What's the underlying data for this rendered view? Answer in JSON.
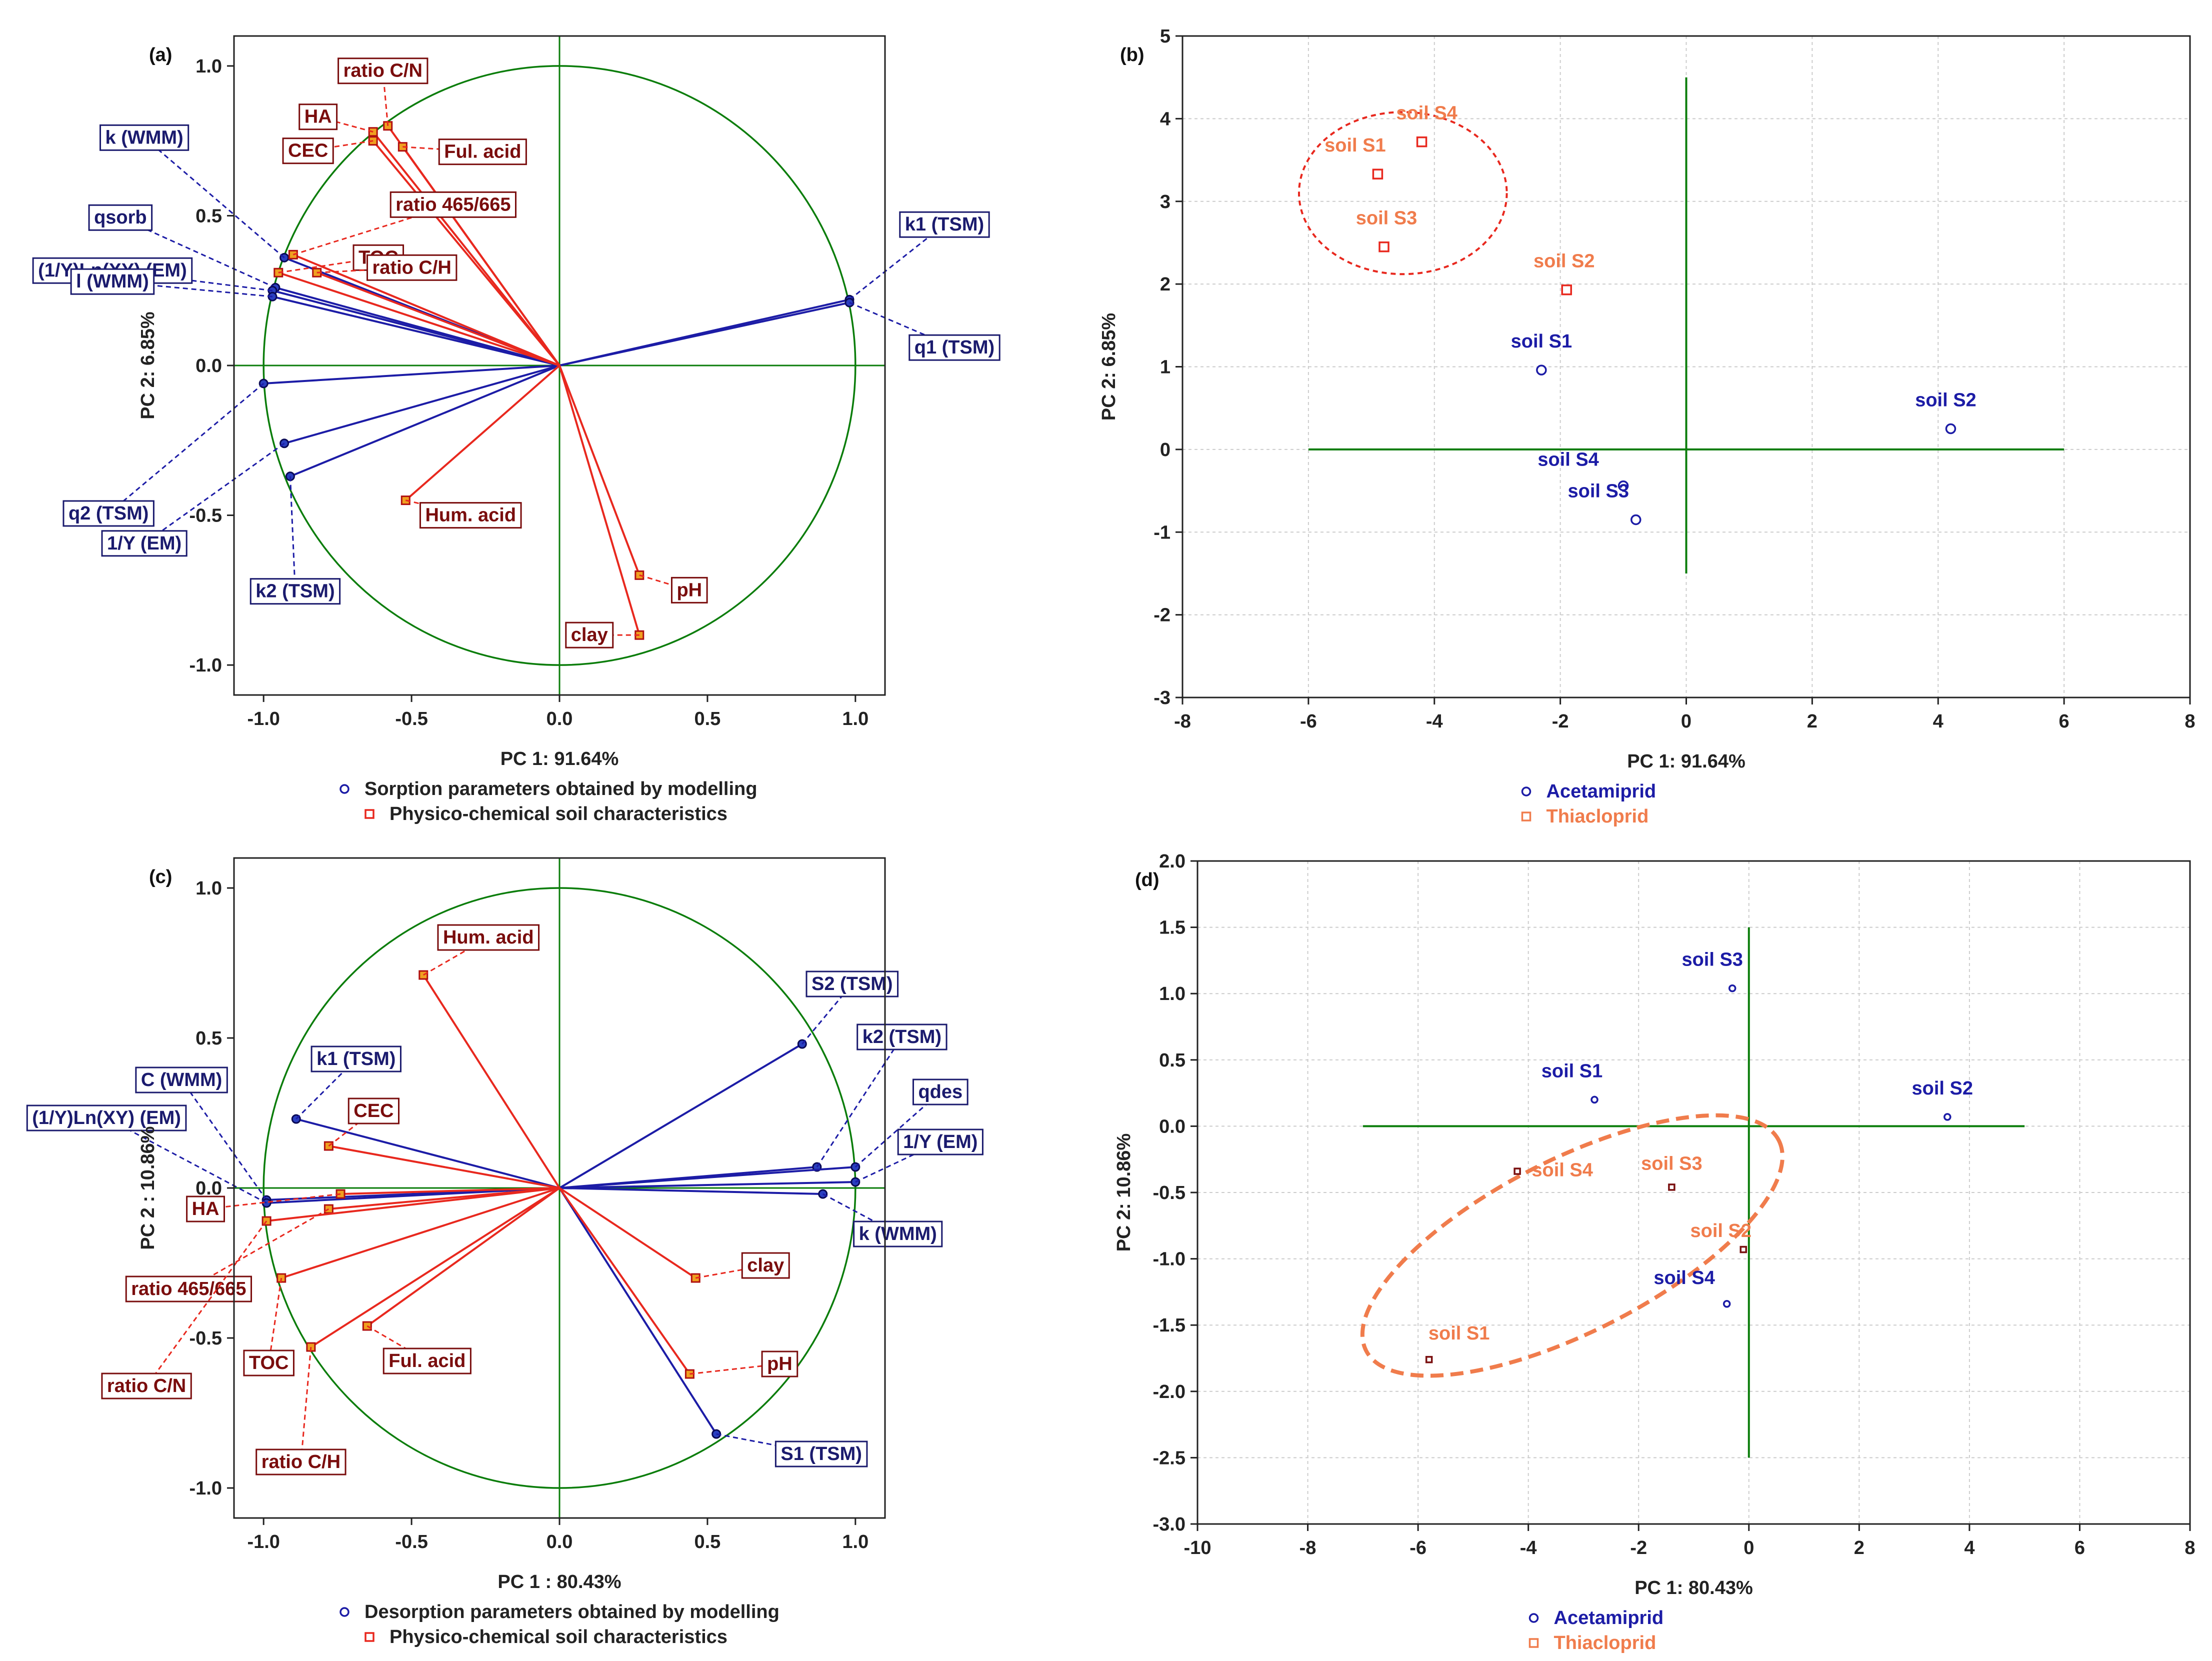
{
  "colors": {
    "sorption": "#1c1ca6",
    "physico": "#e8281e",
    "thiacloprid": "#f07c4c",
    "axis": "#0b7d0b",
    "grid": "#cccccc"
  },
  "chart_data": [
    {
      "id": "a",
      "type": "scatter",
      "subtype": "pca-loadings",
      "panel_label": "(a)",
      "xlabel": "PC 1: 91.64%",
      "ylabel": "PC 2:  6.85%",
      "xlim": [
        -1.1,
        1.1
      ],
      "ylim": [
        -1.1,
        1.1
      ],
      "xticks": [
        "-1.0",
        "-0.5",
        "0.0",
        "0.5",
        "1.0"
      ],
      "yticks": [
        "-1.0",
        "-0.5",
        "0.0",
        "0.5",
        "1.0"
      ],
      "legend": [
        {
          "name": "Sorption parameters obtained by modelling",
          "group": "blue"
        },
        {
          "name": "Physico-chemical soil characteristics",
          "group": "red"
        }
      ],
      "series": [
        {
          "name": "Sorption parameters obtained by modelling",
          "group": "blue",
          "points": [
            {
              "label": "k (WMM)",
              "x": -0.93,
              "y": 0.36
            },
            {
              "label": "qsorb",
              "x": -0.96,
              "y": 0.26
            },
            {
              "label": "(1/Y)Ln(XY) (EM)",
              "x": -0.97,
              "y": 0.25
            },
            {
              "label": "l (WMM)",
              "x": -0.97,
              "y": 0.23
            },
            {
              "label": "k1 (TSM)",
              "x": 0.98,
              "y": 0.22
            },
            {
              "label": "q1 (TSM)",
              "x": 0.98,
              "y": 0.21
            },
            {
              "label": "q2 (TSM)",
              "x": -1.0,
              "y": -0.06
            },
            {
              "label": "1/Y (EM)",
              "x": -0.93,
              "y": -0.26
            },
            {
              "label": "k2 (TSM)",
              "x": -0.91,
              "y": -0.37
            }
          ]
        },
        {
          "name": "Physico-chemical soil characteristics",
          "group": "red",
          "points": [
            {
              "label": "ratio C/N",
              "x": -0.58,
              "y": 0.8
            },
            {
              "label": "HA",
              "x": -0.63,
              "y": 0.78
            },
            {
              "label": "CEC",
              "x": -0.63,
              "y": 0.75
            },
            {
              "label": "Ful. acid",
              "x": -0.53,
              "y": 0.73
            },
            {
              "label": "ratio 465/665",
              "x": -0.9,
              "y": 0.37
            },
            {
              "label": "TOC",
              "x": -0.95,
              "y": 0.31
            },
            {
              "label": "ratio C/H",
              "x": -0.82,
              "y": 0.31
            },
            {
              "label": "Hum. acid",
              "x": -0.52,
              "y": -0.45
            },
            {
              "label": "pH",
              "x": 0.27,
              "y": -0.7
            },
            {
              "label": "clay",
              "x": 0.27,
              "y": -0.9
            }
          ]
        }
      ]
    },
    {
      "id": "b",
      "type": "scatter",
      "subtype": "pca-scores",
      "panel_label": "(b)",
      "xlabel": "PC 1: 91.64%",
      "ylabel": "PC 2:  6.85%",
      "xlim": [
        -8,
        8
      ],
      "ylim": [
        -3,
        5
      ],
      "xticks": [
        "-8",
        "-6",
        "-4",
        "-2",
        "0",
        "2",
        "4",
        "6",
        "8"
      ],
      "yticks": [
        "-3",
        "-2",
        "-1",
        "0",
        "1",
        "2",
        "3",
        "4",
        "5"
      ],
      "legend": [
        {
          "name": "Acetamiprid",
          "group": "blue"
        },
        {
          "name": "Thiacloprid",
          "group": "orange"
        }
      ],
      "series": [
        {
          "name": "Acetamiprid",
          "group": "blue",
          "points": [
            {
              "label": "soil S1",
              "x": -2.3,
              "y": 0.96
            },
            {
              "label": "soil S2",
              "x": 4.2,
              "y": 0.25
            },
            {
              "label": "soil S4",
              "x": -1.0,
              "y": -0.44
            },
            {
              "label": "soil S3",
              "x": -0.8,
              "y": -0.85
            }
          ]
        },
        {
          "name": "Thiacloprid",
          "group": "orange",
          "points": [
            {
              "label": "soil S4",
              "x": -4.2,
              "y": 3.72
            },
            {
              "label": "soil S1",
              "x": -4.9,
              "y": 3.33
            },
            {
              "label": "soil S3",
              "x": -4.8,
              "y": 2.45
            },
            {
              "label": "soil S2",
              "x": -1.9,
              "y": 1.93
            }
          ]
        }
      ]
    },
    {
      "id": "c",
      "type": "scatter",
      "subtype": "pca-loadings",
      "panel_label": "(c)",
      "xlabel": "PC 1 : 80.43%",
      "ylabel": "PC 2 : 10.86%",
      "xlim": [
        -1.1,
        1.1
      ],
      "ylim": [
        -1.1,
        1.1
      ],
      "xticks": [
        "-1.0",
        "-0.5",
        "0.0",
        "0.5",
        "1.0"
      ],
      "yticks": [
        "-1.0",
        "-0.5",
        "0.0",
        "0.5",
        "1.0"
      ],
      "legend": [
        {
          "name": "Desorption parameters obtained by modelling",
          "group": "blue"
        },
        {
          "name": "Physico-chemical soil characteristics",
          "group": "red"
        }
      ],
      "series": [
        {
          "name": "Desorption parameters obtained by modelling",
          "group": "blue",
          "points": [
            {
              "label": "S2 (TSM)",
              "x": 0.82,
              "y": 0.48
            },
            {
              "label": "k2 (TSM)",
              "x": 0.87,
              "y": 0.07
            },
            {
              "label": "qdes",
              "x": 1.0,
              "y": 0.07
            },
            {
              "label": "1/Y (EM)",
              "x": 1.0,
              "y": 0.02
            },
            {
              "label": "k (WMM)",
              "x": 0.89,
              "y": -0.02
            },
            {
              "label": "S1 (TSM)",
              "x": 0.53,
              "y": -0.82
            },
            {
              "label": "k1 (TSM)",
              "x": -0.89,
              "y": 0.23
            },
            {
              "label": "C (WMM)",
              "x": -0.99,
              "y": -0.04
            },
            {
              "label": "(1/Y)Ln(XY) (EM)",
              "x": -0.99,
              "y": -0.05
            }
          ]
        },
        {
          "name": "Physico-chemical soil characteristics",
          "group": "red",
          "points": [
            {
              "label": "Hum. acid",
              "x": -0.46,
              "y": 0.71
            },
            {
              "label": "CEC",
              "x": -0.78,
              "y": 0.14
            },
            {
              "label": "HA",
              "x": -0.74,
              "y": -0.02
            },
            {
              "label": "ratio 465/665",
              "x": -0.78,
              "y": -0.07
            },
            {
              "label": "ratio C/N",
              "x": -0.99,
              "y": -0.11
            },
            {
              "label": "TOC",
              "x": -0.94,
              "y": -0.3
            },
            {
              "label": "ratio C/H",
              "x": -0.84,
              "y": -0.53
            },
            {
              "label": "Ful. acid",
              "x": -0.65,
              "y": -0.46
            },
            {
              "label": "clay",
              "x": 0.46,
              "y": -0.3
            },
            {
              "label": "pH",
              "x": 0.44,
              "y": -0.62
            }
          ]
        }
      ]
    },
    {
      "id": "d",
      "type": "scatter",
      "subtype": "pca-scores",
      "panel_label": "(d)",
      "xlabel": "PC 1: 80.43%",
      "ylabel": "PC 2: 10.86%",
      "xlim": [
        -10,
        8
      ],
      "ylim": [
        -3.0,
        2.0
      ],
      "xticks": [
        "-10",
        "-8",
        "-6",
        "-4",
        "-2",
        "0",
        "2",
        "4",
        "6",
        "8"
      ],
      "yticks": [
        "-3.0",
        "-2.5",
        "-2.0",
        "-1.5",
        "-1.0",
        "-0.5",
        "0.0",
        "0.5",
        "1.0",
        "1.5",
        "2.0"
      ],
      "legend": [
        {
          "name": "Acetamiprid",
          "group": "blue"
        },
        {
          "name": "Thiacloprid",
          "group": "orange"
        }
      ],
      "series": [
        {
          "name": "Acetamiprid",
          "group": "blue",
          "points": [
            {
              "label": "soil S3",
              "x": -0.3,
              "y": 1.04
            },
            {
              "label": "soil S1",
              "x": -2.8,
              "y": 0.2
            },
            {
              "label": "soil S2",
              "x": 3.6,
              "y": 0.07
            },
            {
              "label": "soil S4",
              "x": -0.4,
              "y": -1.34
            }
          ]
        },
        {
          "name": "Thiacloprid",
          "group": "orange",
          "points": [
            {
              "label": "soil S4",
              "x": -4.2,
              "y": -0.34
            },
            {
              "label": "soil S3",
              "x": -1.4,
              "y": -0.46
            },
            {
              "label": "soil S2",
              "x": -0.1,
              "y": -0.93
            },
            {
              "label": "soil S1",
              "x": -5.8,
              "y": -1.76
            }
          ]
        }
      ]
    }
  ]
}
